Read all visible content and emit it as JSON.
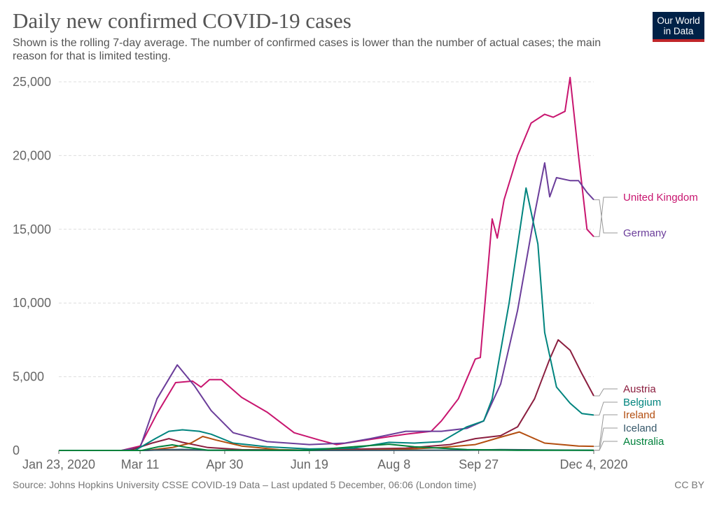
{
  "header": {
    "title": "Daily new confirmed COVID-19 cases",
    "subtitle": "Shown is the rolling 7-day average. The number of confirmed cases is lower than the number of actual cases; the main reason for that is limited testing.",
    "logo_line1": "Our World",
    "logo_line2": "in Data"
  },
  "footer": {
    "source": "Source: Johns Hopkins University CSSE COVID-19 Data – Last updated 5 December, 06:06 (London time)",
    "license": "CC BY"
  },
  "chart_data": {
    "type": "line",
    "title": "Daily new confirmed COVID-19 cases",
    "x_range": [
      "2020-01-23",
      "2020-12-04"
    ],
    "ylim": [
      0,
      25000
    ],
    "y_ticks": [
      0,
      5000,
      10000,
      15000,
      20000,
      25000
    ],
    "y_tick_labels": [
      "0",
      "5,000",
      "10,000",
      "15,000",
      "20,000",
      "25,000"
    ],
    "x_ticks": [
      "2020-01-23",
      "2020-03-11",
      "2020-04-30",
      "2020-06-19",
      "2020-08-08",
      "2020-09-27",
      "2020-12-04"
    ],
    "x_tick_labels": [
      "Jan 23, 2020",
      "Mar 11",
      "Apr 30",
      "Jun 19",
      "Aug 8",
      "Sep 27",
      "Dec 4, 2020"
    ],
    "grid": "horizontal dashed",
    "legend": "labels at right end of lines",
    "series": [
      {
        "name": "United Kingdom",
        "color": "#c8156f",
        "x": [
          "2020-01-23",
          "2020-02-29",
          "2020-03-11",
          "2020-03-21",
          "2020-04-01",
          "2020-04-11",
          "2020-04-16",
          "2020-04-21",
          "2020-04-28",
          "2020-05-10",
          "2020-05-25",
          "2020-06-10",
          "2020-06-25",
          "2020-07-05",
          "2020-07-25",
          "2020-08-15",
          "2020-08-30",
          "2020-09-05",
          "2020-09-15",
          "2020-09-25",
          "2020-09-28",
          "2020-10-05",
          "2020-10-08",
          "2020-10-12",
          "2020-10-20",
          "2020-10-28",
          "2020-11-05",
          "2020-11-10",
          "2020-11-17",
          "2020-11-20",
          "2020-11-25",
          "2020-11-30",
          "2020-12-04"
        ],
        "values": [
          0,
          0,
          300,
          2500,
          4600,
          4700,
          4300,
          4800,
          4800,
          3600,
          2600,
          1200,
          700,
          400,
          750,
          1100,
          1300,
          2000,
          3500,
          6200,
          6300,
          15700,
          14400,
          17000,
          20000,
          22200,
          22800,
          22600,
          23000,
          25300,
          20000,
          15000,
          14500
        ]
      },
      {
        "name": "Germany",
        "color": "#6b3d9a",
        "x": [
          "2020-01-23",
          "2020-02-29",
          "2020-03-11",
          "2020-03-21",
          "2020-04-02",
          "2020-04-12",
          "2020-04-22",
          "2020-05-05",
          "2020-05-25",
          "2020-06-19",
          "2020-07-10",
          "2020-07-25",
          "2020-08-15",
          "2020-09-05",
          "2020-09-20",
          "2020-09-30",
          "2020-10-10",
          "2020-10-20",
          "2020-10-30",
          "2020-11-05",
          "2020-11-08",
          "2020-11-12",
          "2020-11-20",
          "2020-11-25",
          "2020-11-30",
          "2020-12-04"
        ],
        "values": [
          0,
          0,
          200,
          3500,
          5800,
          4400,
          2700,
          1200,
          600,
          400,
          500,
          800,
          1300,
          1300,
          1500,
          2000,
          4500,
          9500,
          16000,
          19500,
          17200,
          18500,
          18300,
          18300,
          17500,
          17000
        ]
      },
      {
        "name": "Austria",
        "color": "#8b1e3f",
        "x": [
          "2020-01-23",
          "2020-03-05",
          "2020-03-18",
          "2020-03-28",
          "2020-04-05",
          "2020-04-20",
          "2020-05-10",
          "2020-06-19",
          "2020-07-20",
          "2020-08-15",
          "2020-09-10",
          "2020-09-25",
          "2020-10-10",
          "2020-10-20",
          "2020-10-30",
          "2020-11-08",
          "2020-11-13",
          "2020-11-20",
          "2020-11-27",
          "2020-12-04"
        ],
        "values": [
          0,
          0,
          500,
          800,
          550,
          200,
          50,
          20,
          100,
          150,
          400,
          800,
          1000,
          1600,
          3500,
          6200,
          7500,
          6800,
          5200,
          3700
        ]
      },
      {
        "name": "Belgium",
        "color": "#00847e",
        "x": [
          "2020-01-23",
          "2020-03-08",
          "2020-03-20",
          "2020-03-28",
          "2020-04-05",
          "2020-04-15",
          "2020-04-22",
          "2020-05-05",
          "2020-05-25",
          "2020-06-19",
          "2020-07-15",
          "2020-08-05",
          "2020-08-20",
          "2020-09-05",
          "2020-09-20",
          "2020-09-30",
          "2020-10-05",
          "2020-10-15",
          "2020-10-25",
          "2020-11-01",
          "2020-11-05",
          "2020-11-12",
          "2020-11-20",
          "2020-11-27",
          "2020-12-04"
        ],
        "values": [
          0,
          0,
          800,
          1300,
          1400,
          1300,
          1100,
          500,
          250,
          100,
          150,
          550,
          500,
          600,
          1600,
          2000,
          3500,
          10000,
          17800,
          14000,
          8000,
          4300,
          3200,
          2500,
          2400
        ]
      },
      {
        "name": "Ireland",
        "color": "#b34e10",
        "x": [
          "2020-01-23",
          "2020-03-15",
          "2020-03-30",
          "2020-04-10",
          "2020-04-17",
          "2020-04-25",
          "2020-05-10",
          "2020-06-01",
          "2020-06-19",
          "2020-07-20",
          "2020-08-15",
          "2020-09-05",
          "2020-09-25",
          "2020-10-10",
          "2020-10-21",
          "2020-10-28",
          "2020-11-05",
          "2020-11-15",
          "2020-11-25",
          "2020-12-04"
        ],
        "values": [
          0,
          0,
          200,
          500,
          950,
          700,
          300,
          50,
          15,
          20,
          80,
          200,
          400,
          900,
          1250,
          900,
          500,
          400,
          300,
          280
        ]
      },
      {
        "name": "Iceland",
        "color": "#38596b",
        "x": [
          "2020-01-23",
          "2020-03-15",
          "2020-03-25",
          "2020-04-05",
          "2020-04-20",
          "2020-06-19",
          "2020-09-20",
          "2020-10-10",
          "2020-11-01",
          "2020-12-04"
        ],
        "values": [
          0,
          0,
          50,
          70,
          10,
          0,
          20,
          60,
          40,
          10
        ]
      },
      {
        "name": "Australia",
        "color": "#00813b",
        "x": [
          "2020-01-23",
          "2020-03-12",
          "2020-03-22",
          "2020-03-30",
          "2020-04-08",
          "2020-04-20",
          "2020-06-19",
          "2020-07-15",
          "2020-08-05",
          "2020-08-20",
          "2020-09-20",
          "2020-10-20",
          "2020-12-04"
        ],
        "values": [
          0,
          0,
          250,
          380,
          200,
          20,
          15,
          250,
          420,
          250,
          60,
          15,
          10
        ]
      }
    ]
  }
}
